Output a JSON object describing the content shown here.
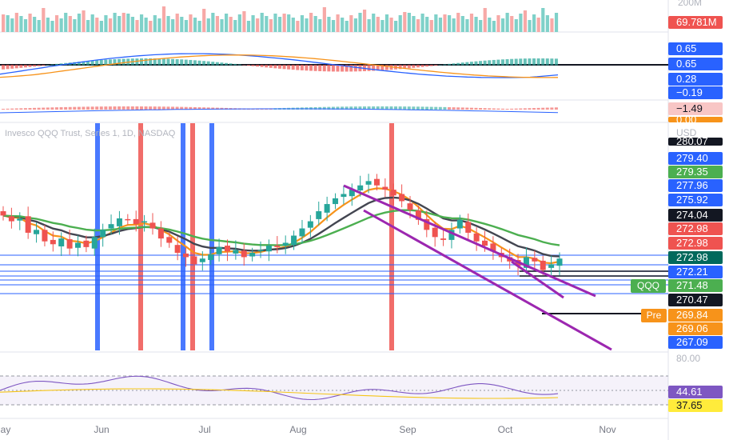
{
  "chart_data": {
    "type": "candlestick",
    "title": "Invesco QQQ Trust, Series 1, 1D, NASDAQ",
    "symbol": "QQQ",
    "price_scale": {
      "unit_label": "USD",
      "min": 265.4,
      "max": 280.9
    },
    "x_axis": {
      "months": [
        "May",
        "Jun",
        "Jul",
        "Aug",
        "Sep",
        "Oct",
        "Nov"
      ]
    },
    "colors": {
      "up": "#26a69a",
      "down": "#ef5350",
      "ema_fast": "#f7931a",
      "ema_mid": "#434651",
      "ema_slow": "#4caf50",
      "channel": "#9c27b0",
      "level": "#2962ff",
      "rsi": "#7e57c2"
    },
    "series": [
      {
        "name": "close",
        "values": [
          274.8,
          274.4,
          274.6,
          273.6,
          273.8,
          273.0,
          272.8,
          273.2,
          272.5,
          272.9,
          272.6,
          273.3,
          273.8,
          274.2,
          274.6,
          274.5,
          274.2,
          274.4,
          273.9,
          273.2,
          272.9,
          272.2,
          271.9,
          271.4,
          271.8,
          272.1,
          272.6,
          272.3,
          272.4,
          271.9,
          272.2,
          272.4,
          272.7,
          272.6,
          272.9,
          273.4,
          273.9,
          274.4,
          275.1,
          275.6,
          276.0,
          276.3,
          276.6,
          276.9,
          277.2,
          276.9,
          276.6,
          276.2,
          275.8,
          275.2,
          274.5,
          273.8,
          273.3,
          273.1,
          273.8,
          274.5,
          273.6,
          273.0,
          272.7,
          272.3,
          271.9,
          271.6,
          271.3,
          271.9,
          271.6,
          271.0,
          271.4,
          271.8
        ]
      },
      {
        "name": "volume",
        "last_label": "69.781M",
        "scale_label": "200M"
      }
    ],
    "price_labels": [
      "280.07",
      "279.40",
      "279.35",
      "277.96",
      "275.92",
      "274.04",
      "272.98",
      "272.98",
      "272.98",
      "272.21",
      "271.48",
      "270.47",
      "269.84",
      "269.06",
      "267.09"
    ],
    "indicators": {
      "macd_labels": [
        "0.65",
        "0.65",
        "0.28",
        "−0.19"
      ],
      "osc_labels": [
        "−1.49",
        "0.00"
      ],
      "rsi_labels": [
        "44.61",
        "37.65"
      ],
      "rsi_band_top_label": "80.00"
    },
    "premarket_label": "Pre"
  }
}
